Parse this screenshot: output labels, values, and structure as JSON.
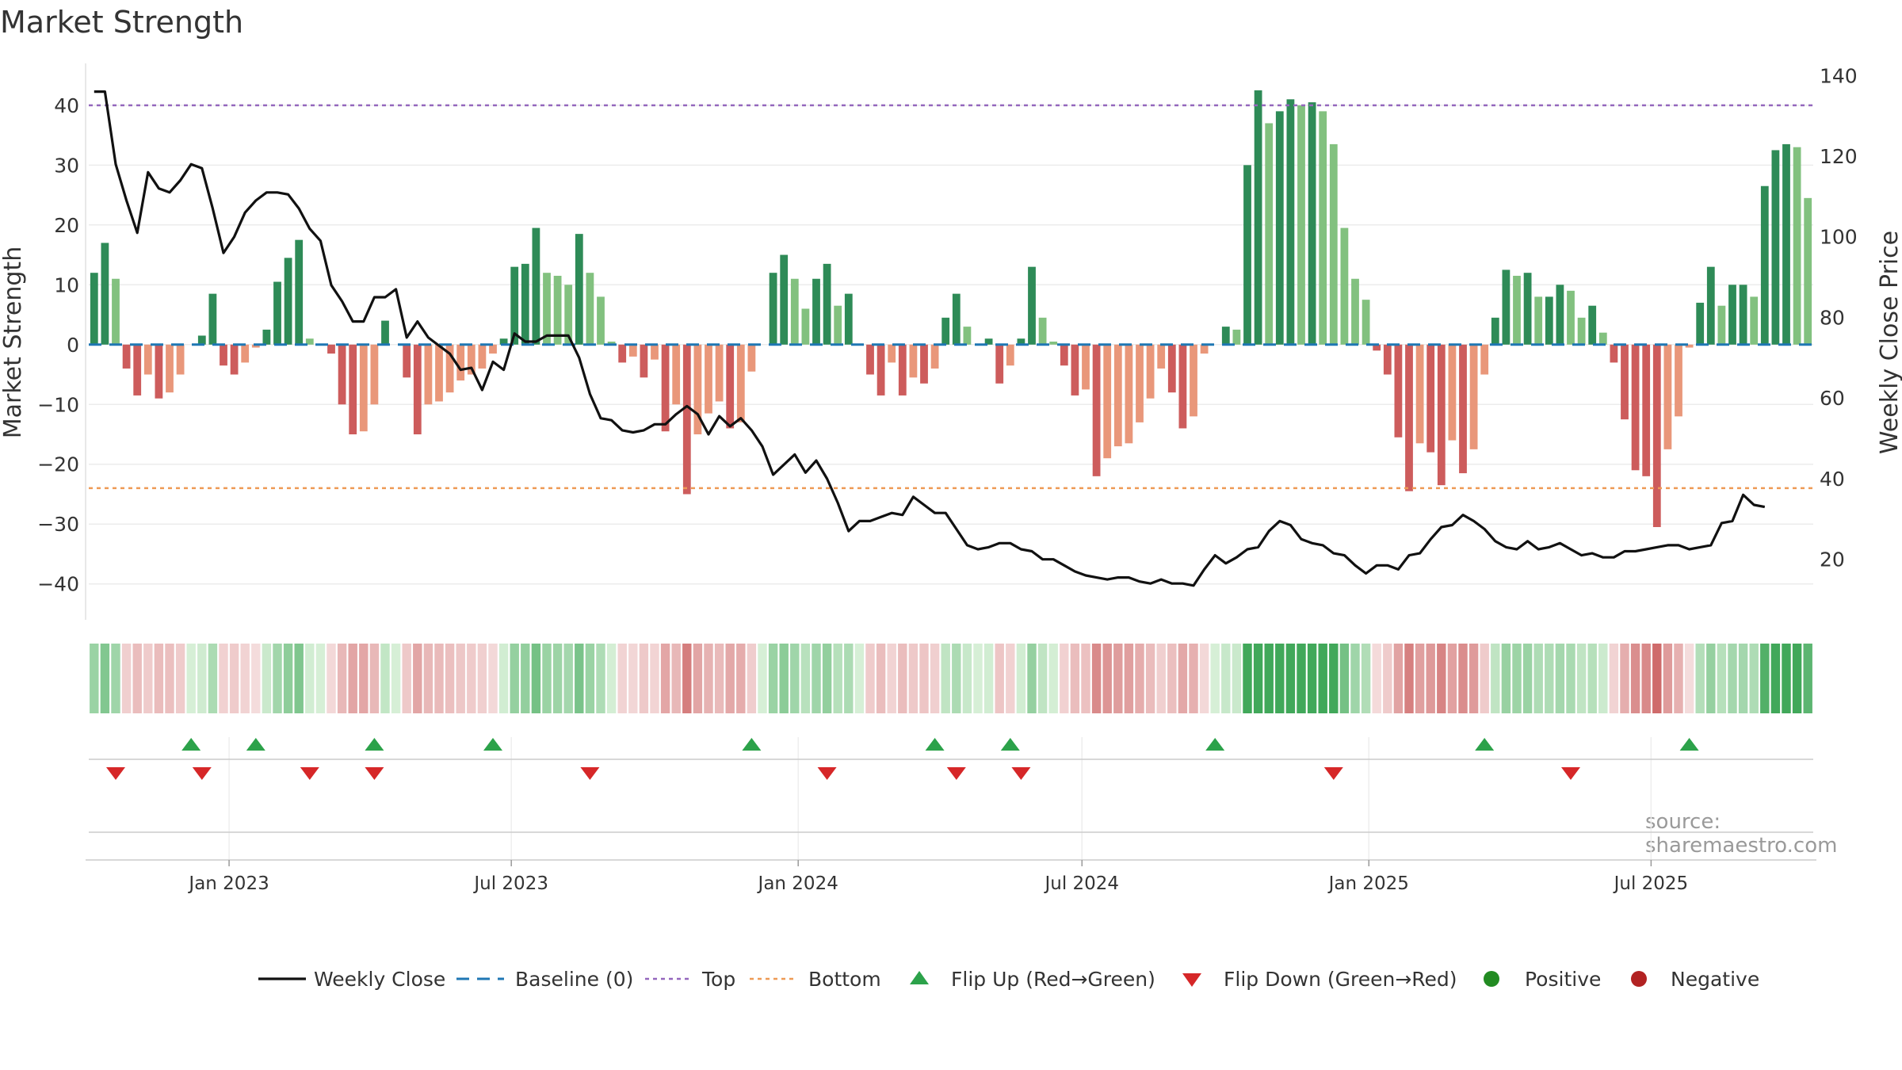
{
  "title": "Market Strength",
  "source": "source: sharemaestro.com",
  "colors": {
    "close": "#111111",
    "baseline": "#1f77b4",
    "top": "#9467bd",
    "bottom": "#ee9a55",
    "pos_strong": "#2e8b57",
    "pos_light": "#82c17f",
    "neg_strong": "#cd5c5c",
    "neg_light": "#e9977a",
    "flip_up": "#2ca24a",
    "flip_down": "#d62728",
    "positive": "#228b22",
    "negative": "#b22222"
  },
  "chart_data": {
    "type": "bar",
    "title": "Market Strength",
    "ylabel": "Market Strength",
    "y2label": "Weekly Close Price",
    "ylim": [
      -46,
      47
    ],
    "y2lim": [
      5,
      143
    ],
    "yticks": [
      40,
      30,
      20,
      10,
      0,
      -10,
      -20,
      -30,
      -40
    ],
    "yticklabels": [
      "40",
      "30",
      "20",
      "10",
      "0",
      "−10",
      "−20",
      "−30",
      "−40"
    ],
    "y2ticks": [
      140,
      120,
      100,
      80,
      60,
      40,
      20
    ],
    "y2ticklabels": [
      "140",
      "120",
      "100",
      "80",
      "60",
      "40",
      "20"
    ],
    "x_domain": [
      "2022-10-03",
      "2025-10-13"
    ],
    "xticks": [
      "Jan 2023",
      "Jul 2023",
      "Jan 2024",
      "Jul 2024",
      "Jan 2025",
      "Jul 2025"
    ],
    "xtick_dates": [
      "2023-01-01",
      "2023-07-01",
      "2024-01-01",
      "2024-07-01",
      "2025-01-01",
      "2025-07-01"
    ],
    "reference_lines": {
      "baseline": 0,
      "top": 40,
      "bottom": -24
    },
    "strength": [
      12,
      17,
      11,
      -4,
      -8.5,
      -5,
      -9,
      -8,
      -5,
      0,
      1.5,
      8.5,
      -3.5,
      -5,
      -3,
      -0.5,
      2.5,
      10.5,
      14.5,
      17.5,
      1,
      0,
      -1.5,
      -10,
      -15,
      -14.5,
      -10,
      4,
      0,
      -5.5,
      -15,
      -10,
      -9.5,
      -8,
      -6,
      -5,
      -4,
      -1.5,
      1,
      13,
      13.5,
      19.5,
      12,
      11.5,
      10,
      18.5,
      12,
      8,
      0.5,
      -3,
      -2,
      -5.5,
      -2.5,
      -14.5,
      -10,
      -25,
      -15,
      -11.5,
      -9.5,
      -14,
      -13,
      -4.5,
      0,
      12,
      15,
      11,
      6,
      11,
      13.5,
      6.5,
      8.5,
      0,
      -5,
      -8.5,
      -3,
      -8.5,
      -5.5,
      -6.5,
      -4,
      4.5,
      8.5,
      3,
      0,
      1,
      -6.5,
      -3.5,
      1,
      13,
      4.5,
      0.5,
      -3.5,
      -8.5,
      -7.5,
      -22,
      -19,
      -17,
      -16.5,
      -13,
      -9,
      -4,
      -8,
      -14,
      -12,
      -1.5,
      0,
      3,
      2.5,
      30,
      42.5,
      37,
      39,
      41,
      40,
      40.5,
      39,
      33.5,
      19.5,
      11,
      7.5,
      -1,
      -5,
      -15.5,
      -24.5,
      -16.5,
      -18,
      -23.5,
      -16,
      -21.5,
      -17.5,
      -5,
      4.5,
      12.5,
      11.5,
      12,
      8,
      8,
      10,
      9,
      4.5,
      6.5,
      2,
      -3,
      -12.5,
      -21,
      -22,
      -30.5,
      -17.5,
      -12,
      -0.5,
      7,
      13,
      6.5,
      10,
      10,
      8,
      26.5,
      32.5,
      33.5,
      33,
      24.5
    ],
    "weekly_close": [
      136,
      136,
      118,
      109,
      101,
      116,
      112,
      111,
      114,
      118,
      117,
      107,
      96,
      100,
      106,
      109,
      111,
      111,
      110.5,
      107,
      102,
      99,
      88,
      84,
      79,
      79,
      85,
      85,
      87,
      75,
      79,
      75,
      73,
      71,
      67,
      67.5,
      62,
      69,
      67,
      76,
      74,
      74,
      75.5,
      75.5,
      75.5,
      70,
      61,
      55,
      54.5,
      52,
      51.5,
      52,
      53.5,
      53.5,
      56,
      58,
      56,
      51,
      55.5,
      53,
      55,
      52,
      48,
      41,
      43.5,
      46,
      41.5,
      44.5,
      40,
      34,
      27,
      29.5,
      29.5,
      30.5,
      31.5,
      31,
      35.5,
      33.5,
      31.5,
      31.5,
      27.5,
      23.5,
      22.5,
      23,
      24,
      24,
      22.5,
      22,
      20,
      20,
      18.5,
      17,
      16,
      15.5,
      15,
      15.5,
      15.5,
      14.5,
      14,
      15,
      14,
      14,
      13.5,
      17.5,
      21,
      19,
      20.5,
      22.5,
      23,
      27,
      29.5,
      28.5,
      25,
      24,
      23.5,
      21.5,
      21,
      18.5,
      16.5,
      18.5,
      18.5,
      17.5,
      21,
      21.5,
      25,
      28,
      28.5,
      31,
      29.5,
      27.5,
      24.5,
      23,
      22.5,
      24.5,
      22.5,
      23,
      24,
      22.5,
      21,
      21.5,
      20.5,
      20.5,
      22,
      22,
      22.5,
      23,
      23.5,
      23.5,
      22.5,
      23,
      23.5,
      29,
      29.5,
      36,
      33.5,
      33
    ],
    "flip_up_weeks": [
      9,
      15,
      26,
      37,
      61,
      78,
      85,
      104,
      129,
      148
    ],
    "flip_down_weeks": [
      2,
      10,
      20,
      26,
      46,
      68,
      80,
      86,
      115,
      137
    ],
    "legend": [
      "Weekly Close",
      "Baseline (0)",
      "Top",
      "Bottom",
      "Flip Up (Red→Green)",
      "Flip Down (Green→Red)",
      "Positive",
      "Negative"
    ],
    "legend_position": "bottom-center"
  }
}
